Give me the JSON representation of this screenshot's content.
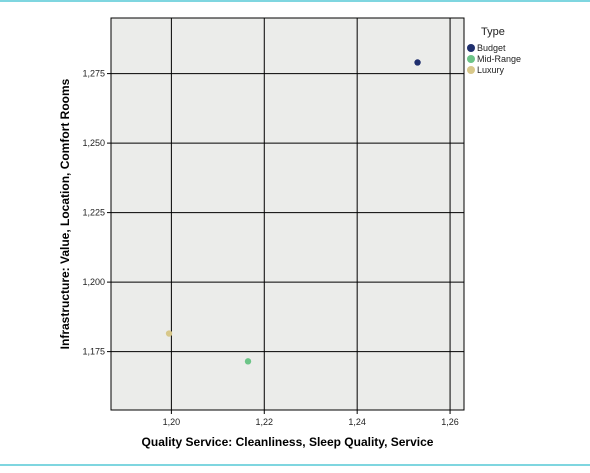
{
  "colors": {
    "frame": "#7fd6e0",
    "plot_background": "#ebecea",
    "grid": "#000000"
  },
  "chart_data": {
    "type": "scatter",
    "xlabel": "Quality Service: Cleanliness, Sleep Quality, Service",
    "ylabel": "Infrastructure: Value, Location, Comfort Rooms",
    "xlim": [
      1.187,
      1.263
    ],
    "ylim": [
      1.154,
      1.295
    ],
    "x_ticks": [
      1.2,
      1.22,
      1.24,
      1.26
    ],
    "x_tick_labels": [
      "1,20",
      "1,22",
      "1,24",
      "1,26"
    ],
    "y_ticks": [
      1.175,
      1.2,
      1.225,
      1.25,
      1.275
    ],
    "y_tick_labels": [
      "1,175",
      "1,200",
      "1,225",
      "1,250",
      "1,275"
    ],
    "grid": true,
    "legend": {
      "title": "Type",
      "placement": "right"
    },
    "series": [
      {
        "name": "Budget",
        "color": "#1f2f6e",
        "points": [
          {
            "x": 1.253,
            "y": 1.279
          }
        ]
      },
      {
        "name": "Mid-Range",
        "color": "#6cc487",
        "points": [
          {
            "x": 1.2165,
            "y": 1.1715
          }
        ]
      },
      {
        "name": "Luxury",
        "color": "#d8c88a",
        "points": [
          {
            "x": 1.1995,
            "y": 1.1815
          }
        ]
      }
    ]
  }
}
